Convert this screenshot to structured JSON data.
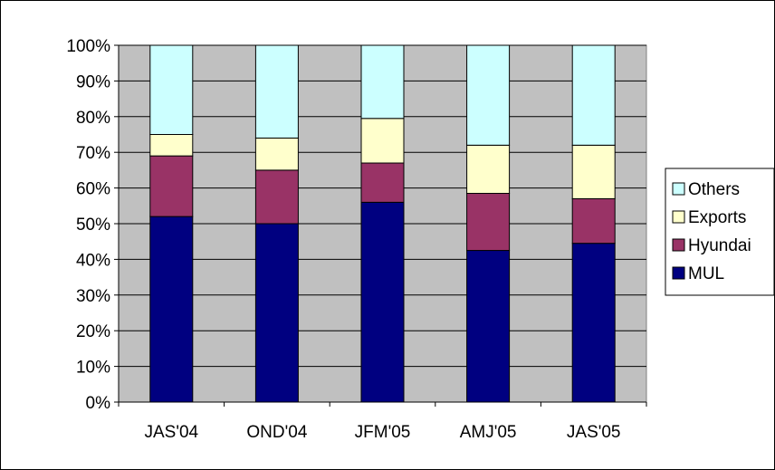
{
  "chart_data": {
    "type": "bar",
    "stacked": true,
    "categories": [
      "JAS'04",
      "OND'04",
      "JFM'05",
      "AMJ'05",
      "JAS'05"
    ],
    "series": [
      {
        "name": "MUL",
        "values": [
          52,
          50,
          56,
          42.5,
          44.5
        ],
        "color": "#000080"
      },
      {
        "name": "Hyundai",
        "values": [
          17,
          15,
          11,
          16,
          12.5
        ],
        "color": "#993366"
      },
      {
        "name": "Exports",
        "values": [
          6,
          9,
          12.5,
          13.5,
          15
        ],
        "color": "#FFFFCC"
      },
      {
        "name": "Others",
        "values": [
          25,
          26,
          20.5,
          28,
          28
        ],
        "color": "#CCFFFF"
      }
    ],
    "legend_order": [
      "Others",
      "Exports",
      "Hyundai",
      "MUL"
    ],
    "ylim": [
      0,
      100
    ],
    "y_ticks": [
      0,
      10,
      20,
      30,
      40,
      50,
      60,
      70,
      80,
      90,
      100
    ],
    "y_tick_format": "percent",
    "grid": true,
    "plot_background": "#C0C0C0",
    "legend_position": "right",
    "title": "",
    "xlabel": "",
    "ylabel": ""
  }
}
